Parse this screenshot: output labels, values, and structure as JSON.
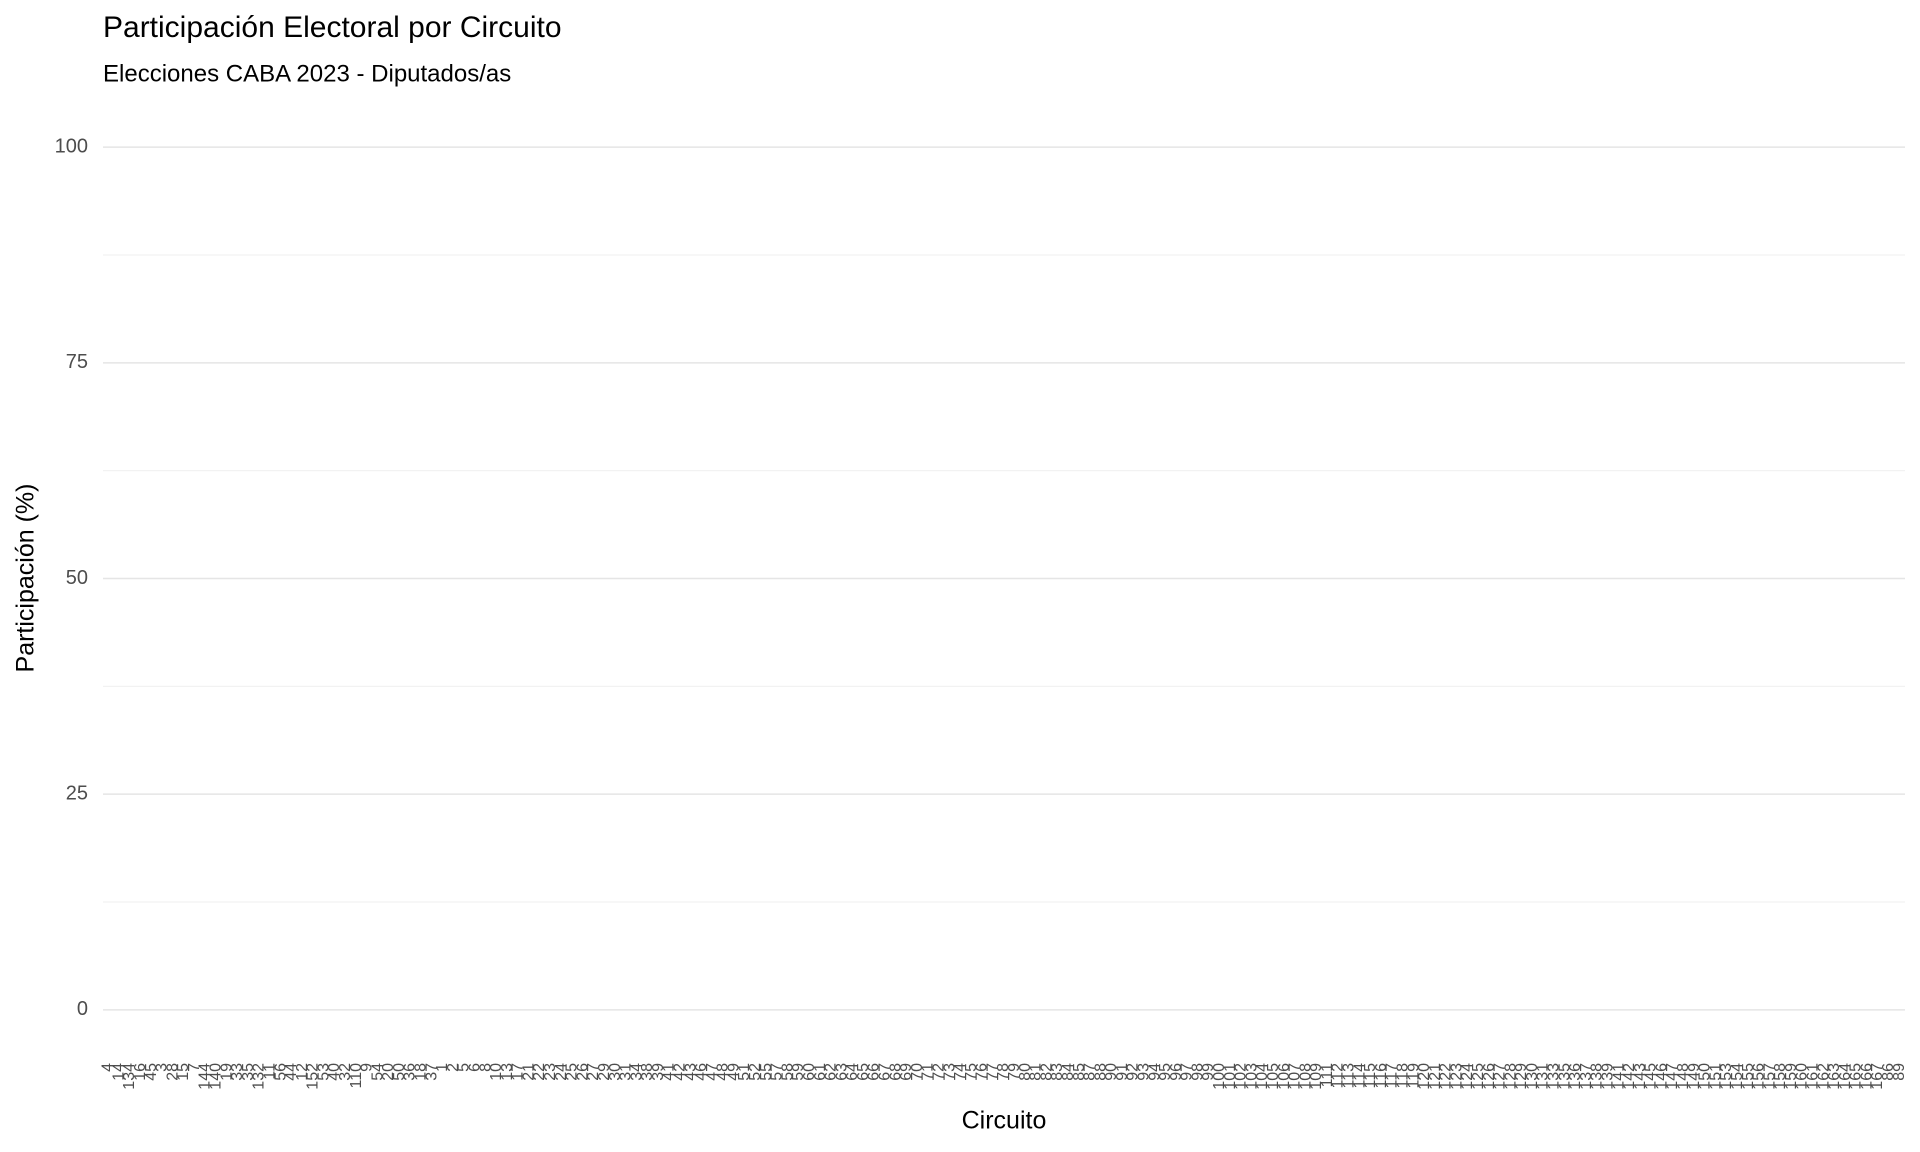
{
  "chart_data": {
    "type": "bar",
    "title": "Participación Electoral por Circuito",
    "subtitle": "Elecciones CABA 2023 - Diputados/as",
    "x_label": "Circuito",
    "y_label": "Participación (%)",
    "categories": [
      "4",
      "14",
      "134",
      "16",
      "45",
      "3",
      "28",
      "15",
      "7",
      "144",
      "140",
      "19",
      "33",
      "35",
      "132",
      "11",
      "56",
      "44",
      "12",
      "152",
      "53",
      "40",
      "32",
      "110",
      "9",
      "54",
      "20",
      "50",
      "36",
      "18",
      "37",
      "1",
      "2",
      "5",
      "6",
      "8",
      "10",
      "13",
      "17",
      "21",
      "22",
      "23",
      "24",
      "25",
      "26",
      "27",
      "29",
      "30",
      "31",
      "34",
      "38",
      "39",
      "41",
      "42",
      "43",
      "46",
      "47",
      "48",
      "49",
      "51",
      "52",
      "55",
      "57",
      "58",
      "59",
      "60",
      "61",
      "62",
      "63",
      "64",
      "65",
      "66",
      "67",
      "68",
      "69",
      "70",
      "71",
      "72",
      "73",
      "74",
      "75",
      "76",
      "77",
      "78",
      "79",
      "80",
      "81",
      "82",
      "83",
      "84",
      "85",
      "87",
      "88",
      "90",
      "91",
      "92",
      "93",
      "94",
      "95",
      "96",
      "97",
      "98",
      "99",
      "100",
      "101",
      "102",
      "103",
      "104",
      "105",
      "106",
      "107",
      "108",
      "109",
      "111",
      "112",
      "113",
      "114",
      "115",
      "116",
      "117",
      "118",
      "119",
      "120",
      "121",
      "122",
      "123",
      "124",
      "125",
      "126",
      "127",
      "128",
      "129",
      "130",
      "131",
      "133",
      "135",
      "136",
      "137",
      "138",
      "139",
      "141",
      "142",
      "143",
      "145",
      "146",
      "147",
      "148",
      "149",
      "150",
      "151",
      "153",
      "154",
      "155",
      "156",
      "157",
      "158",
      "159",
      "160",
      "161",
      "162",
      "163",
      "164",
      "165",
      "166",
      "167",
      "86",
      "89"
    ],
    "ylim": [
      -5,
      105
    ],
    "yticks": [
      0,
      25,
      50,
      75,
      100
    ],
    "y_minor_ticks": [
      12.5,
      37.5,
      62.5,
      87.5
    ],
    "grid": true
  }
}
